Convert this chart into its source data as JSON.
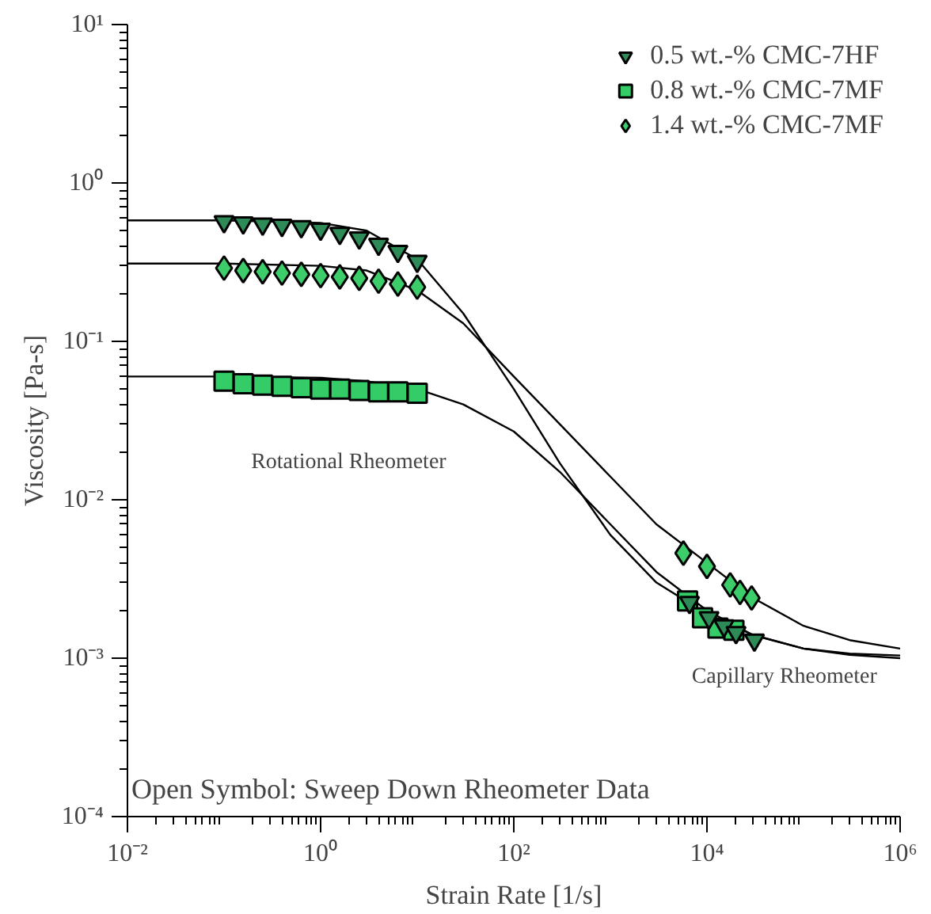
{
  "chart_data": {
    "type": "scatter",
    "xlabel": "Strain Rate [1/s]",
    "ylabel": "Viscosity [Pa-s]",
    "log": "xy",
    "grid": false,
    "legend": "top right",
    "xlim": [
      0.01,
      1000000
    ],
    "ylim": [
      0.0001,
      10
    ],
    "xticks": [
      {
        "value": 0.01,
        "label": "10⁻²"
      },
      {
        "value": 1,
        "label": "10⁰"
      },
      {
        "value": 100,
        "label": "10²"
      },
      {
        "value": 10000,
        "label": "10⁴"
      },
      {
        "value": 1000000,
        "label": "10⁶"
      }
    ],
    "yticks": [
      {
        "value": 0.0001,
        "label": "10⁻⁴"
      },
      {
        "value": 0.001,
        "label": "10⁻³"
      },
      {
        "value": 0.01,
        "label": "10⁻²"
      },
      {
        "value": 0.1,
        "label": "10⁻¹"
      },
      {
        "value": 1,
        "label": "10⁰"
      },
      {
        "value": 10,
        "label": "10¹"
      }
    ],
    "annotations": [
      "Rotational Rheometer",
      "Capillary Rheometer",
      "Open Symbol: Sweep Down Rheometer Data"
    ],
    "series": [
      {
        "type": "line",
        "color": "#000000",
        "x": [
          0.01,
          0.1,
          1,
          3,
          10,
          30,
          100,
          300,
          1000,
          3000,
          10000,
          30000,
          100000,
          300000,
          1000000
        ],
        "values": [
          0.58,
          0.58,
          0.56,
          0.5,
          0.33,
          0.15,
          0.05,
          0.017,
          0.006,
          0.003,
          0.0019,
          0.0014,
          0.00115,
          0.00107,
          0.00104
        ]
      },
      {
        "type": "line",
        "color": "#000000",
        "x": [
          0.01,
          0.1,
          1,
          3,
          10,
          30,
          100,
          300,
          1000,
          3000,
          10000,
          30000,
          100000,
          300000,
          1000000
        ],
        "values": [
          0.31,
          0.31,
          0.3,
          0.28,
          0.21,
          0.13,
          0.06,
          0.03,
          0.014,
          0.007,
          0.004,
          0.0024,
          0.0016,
          0.0013,
          0.00115
        ]
      },
      {
        "type": "line",
        "color": "#000000",
        "x": [
          0.01,
          0.1,
          1,
          3,
          10,
          30,
          100,
          300,
          1000,
          3000,
          10000,
          30000,
          100000,
          300000,
          1000000
        ],
        "values": [
          0.06,
          0.06,
          0.059,
          0.056,
          0.05,
          0.04,
          0.027,
          0.015,
          0.007,
          0.0035,
          0.002,
          0.0014,
          0.00115,
          0.00105,
          0.001
        ]
      },
      {
        "name": "0.5 wt.-% CMC-7HF",
        "marker": "triangle",
        "color": "#2e8b57",
        "x": [
          0.1,
          0.158,
          0.251,
          0.398,
          0.631,
          1,
          1.58,
          2.51,
          3.98,
          6.31,
          10,
          6600,
          10500,
          15000,
          20000,
          31000
        ],
        "values": [
          0.57,
          0.56,
          0.55,
          0.54,
          0.53,
          0.51,
          0.48,
          0.45,
          0.41,
          0.37,
          0.32,
          0.00225,
          0.0018,
          0.0016,
          0.00145,
          0.0013
        ]
      },
      {
        "name": "0.8 wt.-% CMC-7MF",
        "marker": "square",
        "color": "#33cc66",
        "x": [
          0.1,
          0.158,
          0.251,
          0.398,
          0.631,
          1,
          1.58,
          2.51,
          3.98,
          6.31,
          10,
          6300,
          9000,
          13000,
          19000
        ],
        "values": [
          0.056,
          0.054,
          0.053,
          0.052,
          0.051,
          0.05,
          0.05,
          0.049,
          0.048,
          0.048,
          0.047,
          0.0023,
          0.0018,
          0.00155,
          0.0015
        ]
      },
      {
        "name": "1.4 wt.-% CMC-7MF",
        "marker": "diamond",
        "color": "#3dcc6a",
        "x": [
          0.1,
          0.158,
          0.251,
          0.398,
          0.631,
          1,
          1.58,
          2.51,
          3.98,
          6.31,
          10,
          5700,
          10000,
          17400,
          22000,
          29000
        ],
        "values": [
          0.29,
          0.28,
          0.275,
          0.27,
          0.265,
          0.26,
          0.255,
          0.25,
          0.24,
          0.23,
          0.22,
          0.0046,
          0.0038,
          0.0029,
          0.0026,
          0.0024
        ]
      }
    ]
  }
}
